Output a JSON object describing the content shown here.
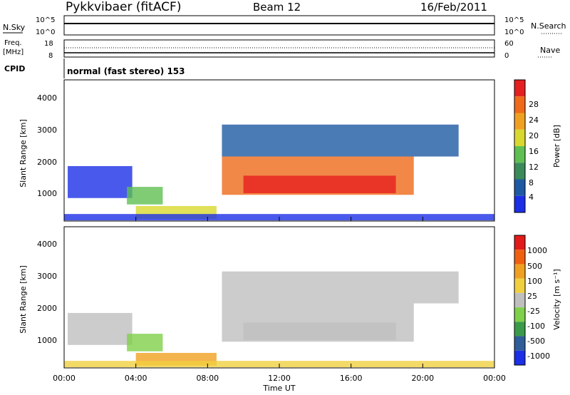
{
  "header": {
    "site": "Pykkvibaer (fitACF)",
    "beam": "Beam 12",
    "date": "16/Feb/2011"
  },
  "noise_panel": {
    "left_label": "N.Sky",
    "left_ticks": [
      "10^5",
      "10^0"
    ],
    "right_ticks": [
      "10^5",
      "10^0"
    ],
    "right_label": "N.Search"
  },
  "freq_panel": {
    "left_label_top": "Freq.",
    "left_label_bottom": "[MHz]",
    "left_ticks": [
      "18",
      "8"
    ],
    "right_ticks": [
      "60",
      "0"
    ],
    "right_label": "Nave"
  },
  "cpid": {
    "label": "CPID",
    "text": "normal (fast stereo) 153"
  },
  "x_axis": {
    "ticks": [
      "00:00",
      "04:00",
      "08:00",
      "12:00",
      "16:00",
      "20:00",
      "00:00"
    ],
    "label": "Time UT"
  },
  "power_panel": {
    "ylabel": "Slant Range [km]",
    "yticks": [
      "4000",
      "3000",
      "2000",
      "1000"
    ],
    "scale_label": "Power [dB]",
    "scale_ticks": [
      "28",
      "24",
      "20",
      "16",
      "12",
      "8",
      "4"
    ]
  },
  "velocity_panel": {
    "ylabel": "Slant Range [km]",
    "yticks": [
      "4000",
      "3000",
      "2000",
      "1000"
    ],
    "scale_label": "Velocity [m s⁻¹]",
    "scale_ticks": [
      "1000",
      "500",
      "100",
      "25",
      "-25",
      "-100",
      "-500",
      "-1000"
    ]
  },
  "chart_data": {
    "type": "heatmap",
    "x_range_hours": [
      0,
      24
    ],
    "y_range_km": [
      180,
      4600
    ],
    "power_color_steps": [
      "#1b2fe6",
      "#1e5aa3",
      "#3b8a5a",
      "#5fbf52",
      "#d8d830",
      "#f0a020",
      "#ef6a1a",
      "#e62020"
    ],
    "velocity_color_steps": [
      "#1b2fe6",
      "#2e5d9a",
      "#3a9a4a",
      "#7fd04a",
      "#bfbfbf",
      "#f0d040",
      "#f0a020",
      "#ef6010",
      "#e21a1a"
    ],
    "regions": [
      {
        "t0": 0.2,
        "t1": 3.8,
        "r0": 900,
        "r1": 1900,
        "power": "#1b2fe6",
        "velocity": "#bfbfbf"
      },
      {
        "t0": 3.5,
        "t1": 5.5,
        "r0": 700,
        "r1": 1250,
        "power": "#5fbf52",
        "velocity": "#7fd04a"
      },
      {
        "t0": 4.0,
        "t1": 8.5,
        "r0": 250,
        "r1": 650,
        "power": "#d8d830",
        "velocity": "#f0a020"
      },
      {
        "t0": 8.8,
        "t1": 19.5,
        "r0": 1000,
        "r1": 2200,
        "power": "#ef6a1a",
        "velocity": "#bfbfbf"
      },
      {
        "t0": 10.0,
        "t1": 18.5,
        "r0": 1050,
        "r1": 1600,
        "power": "#e62020",
        "velocity": "#bfbfbf"
      },
      {
        "t0": 8.8,
        "t1": 22.0,
        "r0": 2200,
        "r1": 3200,
        "power": "#1e5aa3",
        "velocity": "#bfbfbf"
      },
      {
        "t0": 0.0,
        "t1": 24.0,
        "r0": 200,
        "r1": 400,
        "power": "#1b2fe6",
        "velocity": "#f0d040"
      }
    ]
  }
}
